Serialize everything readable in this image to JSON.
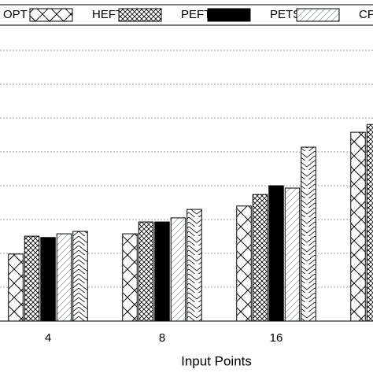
{
  "chart_data": {
    "type": "bar",
    "x_label": "Input Points",
    "categories": [
      "4",
      "8",
      "16",
      null
    ],
    "series": [
      {
        "name": "OPT",
        "color": "#000000",
        "hatch": "cross",
        "values": [
          1.98,
          2.58,
          3.4,
          5.58
        ]
      },
      {
        "name": "HEFT",
        "color": "#000000",
        "hatch": "fine-cross",
        "values": [
          2.51,
          2.93,
          3.74,
          5.81
        ]
      },
      {
        "name": "PEFT",
        "color": "#000000",
        "hatch": "solid",
        "values": [
          2.47,
          2.93,
          4.0,
          null
        ]
      },
      {
        "name": "PETS",
        "color": "#000000",
        "hatch": "diagonal",
        "values": [
          2.58,
          3.05,
          3.93,
          null
        ]
      },
      {
        "name": "CPO",
        "color": "#000000",
        "hatch": "chevron",
        "values": [
          2.65,
          3.3,
          5.14,
          null
        ]
      }
    ],
    "ylim": [
      0,
      9.49
    ],
    "yticks": [
      1,
      2,
      3,
      4,
      5,
      6,
      7,
      8
    ],
    "grid": true,
    "legend": "top"
  }
}
